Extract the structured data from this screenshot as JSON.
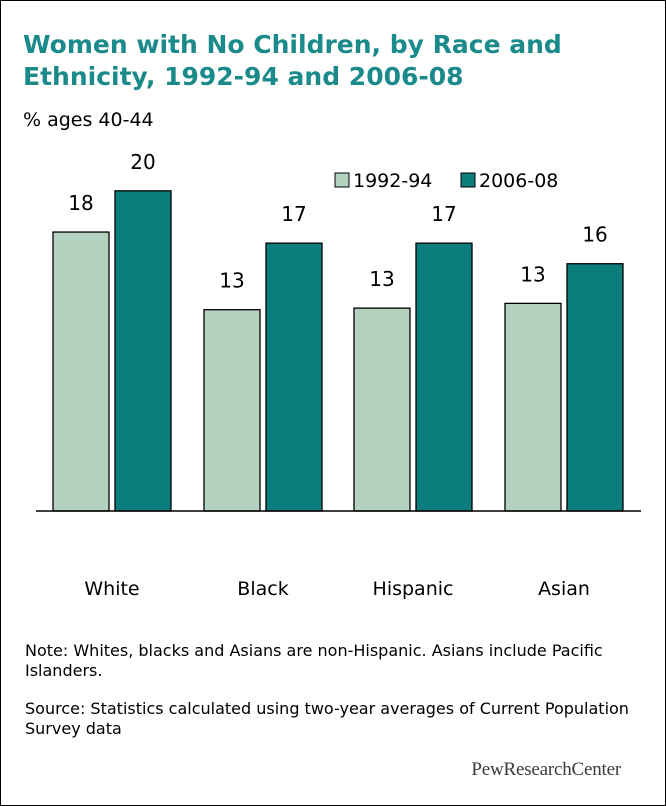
{
  "header": {
    "title": "Women with No Children, by Race and Ethnicity, 1992-94 and 2006-08",
    "subtitle": "% ages 40-44"
  },
  "footer": {
    "note": "Note: Whites, blacks and Asians are non-Hispanic. Asians include Pacific Islanders.",
    "source": "Source: Statistics calculated using two-year averages of Current Population Survey data",
    "logo_part1": "PewResearch",
    "logo_part2": "Center"
  },
  "colors": {
    "title": "#1a8a8a",
    "series_1992": "#b5d1bf",
    "series_2006": "#0b7d7d",
    "axis": "#000000"
  },
  "chart_data": {
    "type": "bar",
    "title": "Women with No Children, by Race and Ethnicity, 1992-94 and 2006-08",
    "subtitle": "% ages 40-44",
    "categories": [
      "White",
      "Black",
      "Hispanic",
      "Asian"
    ],
    "series": [
      {
        "name": "1992-94",
        "values": [
          18,
          13,
          13,
          13
        ],
        "heights": [
          17.6,
          12.7,
          12.8,
          13.1
        ]
      },
      {
        "name": "2006-08",
        "values": [
          20,
          17,
          17,
          16
        ],
        "heights": [
          20.2,
          16.9,
          16.9,
          15.6
        ]
      }
    ],
    "ylim": [
      0,
      25
    ],
    "grid": false,
    "legend": "top"
  }
}
